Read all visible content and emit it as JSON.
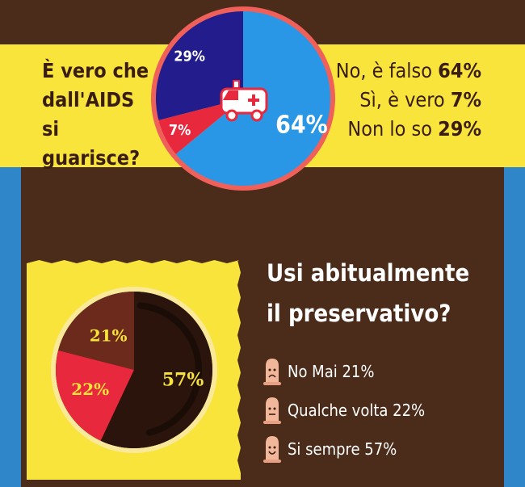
{
  "colors": {
    "background": "#4b2b1a",
    "band": "#f8e43a",
    "side": "#2f86c8",
    "pie1_no": "#2a97e6",
    "pie1_si": "#e8283d",
    "pie1_nonso": "#221c8c",
    "pie1_border": "#f0605a",
    "pie2_no": "#6b2a1b",
    "pie2_qualche": "#e8283d",
    "pie2_si": "#2a140c",
    "pie2_ring": "#fbe99a",
    "ticket": "#f8e43a",
    "condom": "#f2b79a"
  },
  "chart_data": [
    {
      "type": "pie",
      "title": "È vero che dall'AIDS si guarisce?",
      "title_lines": [
        "È vero che",
        "dall'AIDS",
        "si guarisce?"
      ],
      "slices": [
        {
          "label": "No, è falso",
          "value": 64,
          "value_label": "64%",
          "color": "#2a97e6"
        },
        {
          "label": "Sì, è vero",
          "value": 7,
          "value_label": "7%",
          "color": "#e8283d"
        },
        {
          "label": "Non lo so",
          "value": 29,
          "value_label": "29%",
          "color": "#221c8c"
        }
      ],
      "legend": [
        {
          "label": "No, è falso ",
          "value": "64%"
        },
        {
          "label": "Sì, è vero ",
          "value": "7%"
        },
        {
          "label": "Non lo so ",
          "value": "29%"
        }
      ],
      "center_icon": "ambulance-icon"
    },
    {
      "type": "pie",
      "title": "Usi abitualmente il preservativo?",
      "title_lines": [
        "Usi abitualmente",
        "il preservativo?"
      ],
      "slices": [
        {
          "label": "No Mai",
          "value": 21,
          "value_label": "21%",
          "color": "#6b2a1b"
        },
        {
          "label": "Qualche volta",
          "value": 22,
          "value_label": "22%",
          "color": "#e8283d"
        },
        {
          "label": "Si sempre",
          "value": 57,
          "value_label": "57%",
          "color": "#2a140c"
        }
      ],
      "legend": [
        {
          "label": "No Mai 21%",
          "icon": "sad-condom-icon"
        },
        {
          "label": "Qualche volta 22%",
          "icon": "neutral-condom-icon"
        },
        {
          "label": "Si sempre 57%",
          "icon": "happy-condom-icon"
        }
      ]
    }
  ]
}
